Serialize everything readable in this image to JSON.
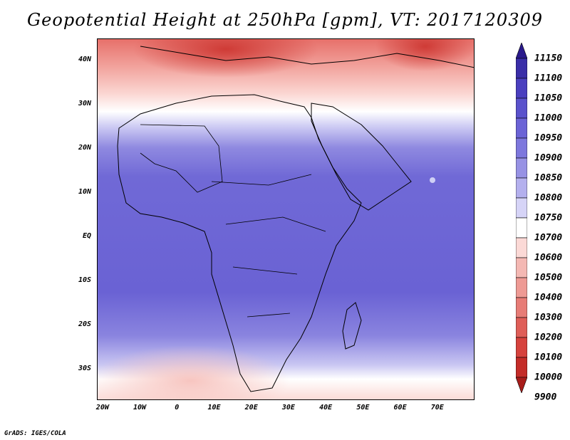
{
  "title": "Geopotential Height at 250hPa [gpm], VT: 2017120309",
  "footer": "GrADS: IGES/COLA",
  "map": {
    "lat_labels": [
      "40N",
      "30N",
      "20N",
      "10N",
      "EQ",
      "10S",
      "20S",
      "30S"
    ],
    "lon_labels": [
      "20W",
      "10W",
      "0",
      "10E",
      "20E",
      "30E",
      "40E",
      "50E",
      "60E",
      "70E"
    ],
    "lat_values": [
      40,
      30,
      20,
      10,
      0,
      -10,
      -20,
      -30
    ],
    "lon_values": [
      -20,
      -10,
      0,
      10,
      20,
      30,
      40,
      50,
      60,
      70
    ],
    "extent": {
      "lon_min": -21.5,
      "lon_max": 80,
      "lat_min": -37,
      "lat_max": 45
    }
  },
  "colorbar": {
    "labels": [
      "11150",
      "11100",
      "11050",
      "11000",
      "10950",
      "10900",
      "10850",
      "10800",
      "10750",
      "10700",
      "10600",
      "10500",
      "10400",
      "10300",
      "10200",
      "10100",
      "10000",
      "9900"
    ],
    "colors": [
      "#2a1a8c",
      "#3a2ea8",
      "#4a3fbf",
      "#5a52cc",
      "#6b63d6",
      "#7d77dd",
      "#9792e4",
      "#b4b0ee",
      "#d6d4f7",
      "#ffffff",
      "#fbd9d6",
      "#f4b8b3",
      "#ee9a94",
      "#e77c76",
      "#df5e58",
      "#d6423d",
      "#c42c28",
      "#a81c1a"
    ]
  }
}
